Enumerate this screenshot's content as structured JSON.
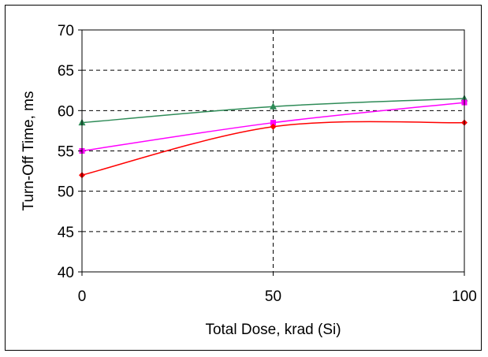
{
  "chart_data": {
    "type": "line",
    "title": "",
    "xlabel": "Total Dose, krad (Si)",
    "ylabel": "Turn-Off Time, ms",
    "xlim": [
      0,
      100
    ],
    "ylim": [
      40,
      70
    ],
    "x_ticks": [
      "0",
      "50",
      "100"
    ],
    "y_ticks": [
      "40",
      "45",
      "50",
      "55",
      "60",
      "65",
      "70"
    ],
    "grid": true,
    "legend": "none",
    "series": [
      {
        "color": "#2e8b57",
        "marker": "triangle",
        "x": [
          0,
          50,
          100
        ],
        "values": [
          58.5,
          60.5,
          61.5
        ]
      },
      {
        "color": "#ff00ff",
        "marker": "square",
        "x": [
          0,
          50,
          100
        ],
        "values": [
          55,
          58.5,
          61
        ]
      },
      {
        "color": "#ff0000",
        "marker": "diamond",
        "x": [
          0,
          50,
          100
        ],
        "values": [
          52,
          58,
          58.5
        ]
      }
    ]
  }
}
